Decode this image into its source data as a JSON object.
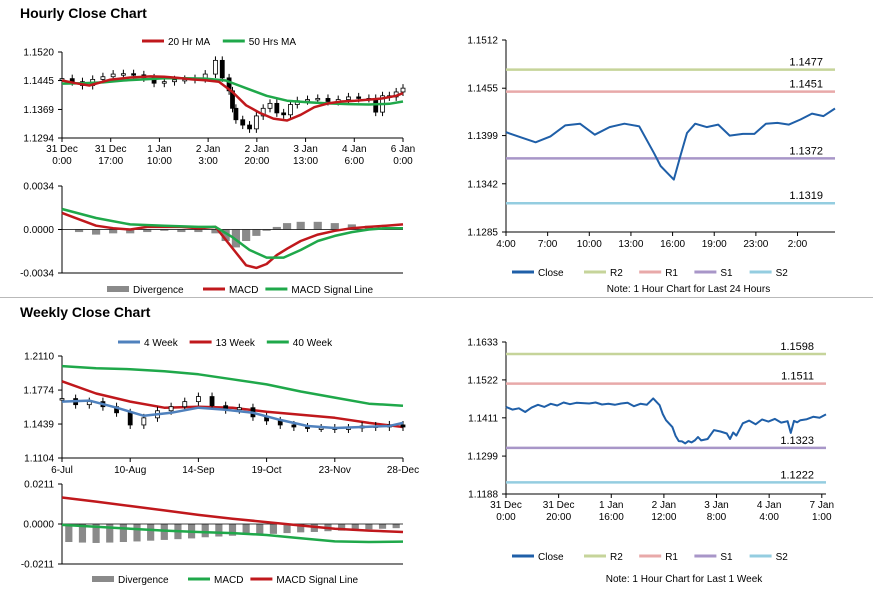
{
  "sections": {
    "hourly_title": "Hourly Close Chart",
    "weekly_title": "Weekly Close Chart"
  },
  "colors": {
    "close": "#1f5fa8",
    "ma20": "#c0181c",
    "ma50": "#1fa84a",
    "r2": "#c6d49a",
    "r1": "#e8a9a9",
    "s1": "#a896c8",
    "s2": "#94cde0",
    "divergence": "#8a8a8a",
    "wk4": "#4f81bd",
    "wk13": "#c0181c",
    "wk40": "#1fa84a"
  },
  "chart_data": [
    {
      "id": "hourly_price",
      "type": "candlestick",
      "legend": [
        "20 Hr MA",
        "50 Hrs MA"
      ],
      "yticks": [
        "1.1520",
        "1.1445",
        "1.1369",
        "1.1294"
      ],
      "ylim": [
        1.1294,
        1.152
      ],
      "xticks": [
        [
          "31 Dec",
          "0:00"
        ],
        [
          "31 Dec",
          "17:00"
        ],
        [
          "1 Jan",
          "10:00"
        ],
        [
          "2 Jan",
          "3:00"
        ],
        [
          "2 Jan",
          "20:00"
        ],
        [
          "3 Jan",
          "13:00"
        ],
        [
          "4 Jan",
          "6:00"
        ],
        [
          "6 Jan",
          "0:00"
        ]
      ],
      "series": [
        {
          "name": "20 Hr MA",
          "x": [
            0,
            4,
            8,
            14,
            20,
            26,
            30,
            34,
            38,
            42,
            46,
            50,
            54,
            58,
            62,
            66,
            70,
            74,
            78,
            82,
            86,
            90,
            94,
            98,
            100
          ],
          "y": [
            1.1445,
            1.1438,
            1.1432,
            1.1447,
            1.1453,
            1.1456,
            1.1455,
            1.1452,
            1.1448,
            1.1446,
            1.1442,
            1.1415,
            1.138,
            1.136,
            1.1345,
            1.134,
            1.1355,
            1.1375,
            1.1385,
            1.139,
            1.1392,
            1.1395,
            1.1398,
            1.1405,
            1.1412
          ]
        },
        {
          "name": "50 Hrs MA",
          "x": [
            0,
            6,
            12,
            18,
            24,
            30,
            36,
            42,
            48,
            54,
            60,
            66,
            72,
            78,
            84,
            90,
            96,
            100
          ],
          "y": [
            1.1437,
            1.1438,
            1.144,
            1.1445,
            1.1448,
            1.1451,
            1.1451,
            1.145,
            1.1445,
            1.1425,
            1.1405,
            1.1392,
            1.1388,
            1.1385,
            1.1383,
            1.1382,
            1.1384,
            1.139
          ]
        }
      ],
      "close": {
        "x": [
          0,
          3,
          6,
          9,
          12,
          15,
          18,
          21,
          24,
          27,
          30,
          33,
          36,
          39,
          42,
          45,
          47,
          49,
          50,
          51,
          53,
          55,
          57,
          59,
          61,
          63,
          65,
          67,
          69,
          72,
          75,
          78,
          81,
          84,
          87,
          90,
          92,
          94,
          96,
          98,
          100
        ],
        "y": [
          1.145,
          1.1442,
          1.1432,
          1.1448,
          1.1455,
          1.1462,
          1.1463,
          1.146,
          1.1452,
          1.1438,
          1.1442,
          1.1447,
          1.1448,
          1.145,
          1.1462,
          1.1498,
          1.1452,
          1.1418,
          1.1372,
          1.1342,
          1.1328,
          1.1318,
          1.1352,
          1.1372,
          1.1385,
          1.136,
          1.1355,
          1.1382,
          1.1392,
          1.1395,
          1.1398,
          1.139,
          1.1395,
          1.1402,
          1.1398,
          1.1398,
          1.1362,
          1.1405,
          1.1402,
          1.1415,
          1.1425
        ]
      }
    },
    {
      "id": "hourly_macd",
      "type": "line+bar",
      "legend": [
        "Divergence",
        "MACD",
        "MACD Signal Line"
      ],
      "yticks": [
        "0.0034",
        "0.0000",
        "-0.0034"
      ],
      "ylim": [
        -0.0034,
        0.0034
      ],
      "series": [
        {
          "name": "MACD",
          "x": [
            0,
            5,
            10,
            15,
            20,
            25,
            30,
            35,
            40,
            45,
            48,
            51,
            54,
            57,
            60,
            63,
            66,
            70,
            75,
            80,
            85,
            90,
            95,
            100
          ],
          "y": [
            0.0013,
            0.0008,
            0.0003,
            0.0001,
            0.0,
            0.0002,
            0.0002,
            0.0002,
            0.0001,
            0.0002,
            -0.0008,
            -0.0018,
            -0.0028,
            -0.003,
            -0.0027,
            -0.002,
            -0.0015,
            -0.0009,
            -0.0004,
            -0.0001,
            0.0001,
            0.0002,
            0.0003,
            0.0004
          ]
        },
        {
          "name": "MACD Signal Line",
          "x": [
            0,
            10,
            20,
            30,
            40,
            45,
            50,
            55,
            60,
            65,
            70,
            75,
            80,
            85,
            90,
            95,
            100
          ],
          "y": [
            0.0016,
            0.0009,
            0.0004,
            0.0003,
            0.0002,
            0.0002,
            -0.0006,
            -0.0016,
            -0.0022,
            -0.0022,
            -0.0016,
            -0.0009,
            -0.0005,
            -0.0002,
            0.0,
            0.0001,
            0.0001
          ]
        }
      ],
      "divergence": {
        "x": [
          5,
          10,
          15,
          20,
          25,
          30,
          35,
          40,
          45,
          48,
          51,
          54,
          57,
          60,
          63,
          66,
          70,
          75,
          80,
          85,
          90,
          95
        ],
        "y": [
          -0.0002,
          -0.0004,
          -0.0003,
          -0.0003,
          -0.0002,
          -0.0001,
          -0.0002,
          -0.0002,
          -0.0003,
          -0.0009,
          -0.0014,
          -0.0009,
          -0.0005,
          -0.0001,
          0.0002,
          0.0005,
          0.0006,
          0.0006,
          0.0005,
          0.0004,
          0.0003,
          0.0002
        ]
      }
    },
    {
      "id": "hourly_levels",
      "type": "line",
      "yticks": [
        "1.1512",
        "1.1455",
        "1.1399",
        "1.1342",
        "1.1285"
      ],
      "ylim": [
        1.1285,
        1.1512
      ],
      "xticks": [
        "4:00",
        "7:00",
        "10:00",
        "13:00",
        "16:00",
        "19:00",
        "23:00",
        "2:00"
      ],
      "levels": {
        "R2": 1.1477,
        "R1": 1.1451,
        "S1": 1.1372,
        "S2": 1.1319
      },
      "level_labels": [
        "1.1477",
        "1.1451",
        "1.1372",
        "1.1319"
      ],
      "legend": [
        "Close",
        "R2",
        "R1",
        "S1",
        "S2"
      ],
      "note": "Note: 1 Hour Chart for Last 24 Hours",
      "close": {
        "x": [
          0,
          4.5,
          9,
          13.5,
          18,
          22.5,
          27,
          31.5,
          36,
          40.5,
          45,
          47,
          49,
          51,
          53,
          55,
          57.5,
          61,
          64.5,
          68,
          72,
          75.5,
          79,
          82.5,
          86,
          89.5,
          93,
          96.5,
          100
        ],
        "y": [
          1.1403,
          1.1397,
          1.1391,
          1.1398,
          1.1411,
          1.1413,
          1.14,
          1.1409,
          1.1413,
          1.141,
          1.1378,
          1.1363,
          1.1355,
          1.1347,
          1.1375,
          1.1402,
          1.1413,
          1.1409,
          1.1412,
          1.1399,
          1.1401,
          1.1401,
          1.1413,
          1.1414,
          1.1412,
          1.1418,
          1.1425,
          1.1422,
          1.1431
        ]
      }
    },
    {
      "id": "weekly_price",
      "type": "candlestick",
      "legend": [
        "4 Week",
        "13 Week",
        "40 Week"
      ],
      "yticks": [
        "1.2110",
        "1.1774",
        "1.1439",
        "1.1104"
      ],
      "ylim": [
        1.1104,
        1.211
      ],
      "xticks": [
        "6-Jul",
        "10-Aug",
        "14-Sep",
        "19-Oct",
        "23-Nov",
        "28-Dec"
      ],
      "series": [
        {
          "name": "4 Week",
          "x": [
            0,
            8,
            16,
            24,
            32,
            40,
            48,
            56,
            64,
            72,
            80,
            88,
            96,
            100
          ],
          "y": [
            1.166,
            1.167,
            1.16,
            1.152,
            1.155,
            1.16,
            1.158,
            1.155,
            1.148,
            1.142,
            1.14,
            1.141,
            1.142,
            1.145
          ]
        },
        {
          "name": "13 Week",
          "x": [
            0,
            10,
            20,
            30,
            40,
            50,
            60,
            70,
            80,
            90,
            100
          ],
          "y": [
            1.186,
            1.174,
            1.166,
            1.16,
            1.161,
            1.16,
            1.156,
            1.153,
            1.15,
            1.145,
            1.141
          ]
        },
        {
          "name": "40 Week",
          "x": [
            0,
            10,
            20,
            30,
            40,
            50,
            60,
            70,
            80,
            90,
            100
          ],
          "y": [
            1.201,
            1.199,
            1.198,
            1.196,
            1.193,
            1.188,
            1.183,
            1.176,
            1.17,
            1.164,
            1.162
          ]
        }
      ],
      "close": {
        "x": [
          0,
          4,
          8,
          12,
          16,
          20,
          24,
          28,
          32,
          36,
          40,
          44,
          48,
          52,
          56,
          60,
          64,
          68,
          72,
          76,
          80,
          84,
          88,
          92,
          96,
          100
        ],
        "y": [
          1.169,
          1.163,
          1.166,
          1.161,
          1.155,
          1.143,
          1.15,
          1.157,
          1.161,
          1.166,
          1.171,
          1.162,
          1.158,
          1.16,
          1.151,
          1.147,
          1.143,
          1.141,
          1.14,
          1.14,
          1.139,
          1.14,
          1.142,
          1.141,
          1.143,
          1.141
        ]
      }
    },
    {
      "id": "weekly_macd",
      "type": "line+bar",
      "legend": [
        "Divergence",
        "MACD",
        "MACD Signal Line"
      ],
      "yticks": [
        "0.0211",
        "0.0000",
        "-0.0211"
      ],
      "ylim": [
        -0.0211,
        0.0211
      ],
      "series": [
        {
          "name": "MACD",
          "x": [
            0,
            10,
            20,
            30,
            40,
            50,
            60,
            70,
            80,
            90,
            100
          ],
          "y": [
            -0.0005,
            -0.0015,
            -0.0025,
            -0.0035,
            -0.0042,
            -0.0048,
            -0.0058,
            -0.0075,
            -0.0092,
            -0.0095,
            -0.0093
          ]
        },
        {
          "name": "MACD Signal Line",
          "x": [
            0,
            10,
            20,
            30,
            40,
            50,
            60,
            70,
            80,
            90,
            100
          ],
          "y": [
            0.014,
            0.0118,
            0.0095,
            0.0072,
            0.0048,
            0.0028,
            0.001,
            -0.0008,
            -0.0025,
            -0.0035,
            -0.0042
          ]
        }
      ],
      "divergence": {
        "x": [
          2,
          6,
          10,
          14,
          18,
          22,
          26,
          30,
          34,
          38,
          42,
          46,
          50,
          54,
          58,
          62,
          66,
          70,
          74,
          78,
          82,
          86,
          90,
          94,
          98
        ],
        "y": [
          -0.0095,
          -0.0098,
          -0.01,
          -0.0098,
          -0.0095,
          -0.0092,
          -0.0088,
          -0.0084,
          -0.008,
          -0.0076,
          -0.007,
          -0.0066,
          -0.0062,
          -0.0058,
          -0.0055,
          -0.0052,
          -0.0048,
          -0.0044,
          -0.0042,
          -0.0038,
          -0.0035,
          -0.0032,
          -0.0028,
          -0.0025,
          -0.0022
        ]
      }
    },
    {
      "id": "weekly_levels",
      "type": "line",
      "yticks": [
        "1.1633",
        "1.1522",
        "1.1411",
        "1.1299",
        "1.1188"
      ],
      "ylim": [
        1.1188,
        1.1633
      ],
      "xticks": [
        [
          "31 Dec",
          "0:00"
        ],
        [
          "31 Dec",
          "20:00"
        ],
        [
          "1 Jan",
          "16:00"
        ],
        [
          "2 Jan",
          "12:00"
        ],
        [
          "3 Jan",
          "8:00"
        ],
        [
          "4 Jan",
          "4:00"
        ],
        [
          "7 Jan",
          "1:00"
        ]
      ],
      "levels": {
        "R2": 1.1598,
        "R1": 1.1511,
        "S1": 1.1323,
        "S2": 1.1222
      },
      "level_labels": [
        "1.1598",
        "1.1511",
        "1.1323",
        "1.1222"
      ],
      "legend": [
        "Close",
        "R2",
        "R1",
        "S1",
        "S2"
      ],
      "note": "Note: 1 Hour Chart for Last 1 Week",
      "close": {
        "x": [
          0,
          2,
          4,
          6,
          8,
          10,
          12,
          14,
          16,
          18,
          20,
          22,
          24,
          26,
          28,
          30,
          32,
          34,
          36,
          38,
          40,
          42,
          44,
          46,
          48,
          49,
          50,
          52,
          53,
          54,
          55,
          56,
          57,
          58,
          59,
          60,
          61,
          63,
          65,
          67,
          69,
          70,
          71,
          72,
          74,
          76,
          78,
          80,
          82,
          84,
          86,
          88,
          89,
          90,
          91,
          92,
          94,
          96,
          98,
          100
        ],
        "y": [
          1.1443,
          1.1435,
          1.1439,
          1.1428,
          1.1441,
          1.1449,
          1.1443,
          1.1452,
          1.1447,
          1.1456,
          1.1451,
          1.1455,
          1.1454,
          1.1453,
          1.1456,
          1.145,
          1.1452,
          1.1449,
          1.1453,
          1.1455,
          1.1445,
          1.1452,
          1.1449,
          1.1468,
          1.1448,
          1.1422,
          1.1404,
          1.1384,
          1.1358,
          1.1343,
          1.1342,
          1.1336,
          1.1343,
          1.1339,
          1.1345,
          1.1355,
          1.1345,
          1.1349,
          1.1375,
          1.1371,
          1.1365,
          1.1349,
          1.1368,
          1.1359,
          1.1395,
          1.1403,
          1.1392,
          1.1406,
          1.14,
          1.1408,
          1.1397,
          1.1401,
          1.1367,
          1.1402,
          1.1398,
          1.1404,
          1.1407,
          1.1414,
          1.1411,
          1.1421
        ]
      }
    }
  ]
}
